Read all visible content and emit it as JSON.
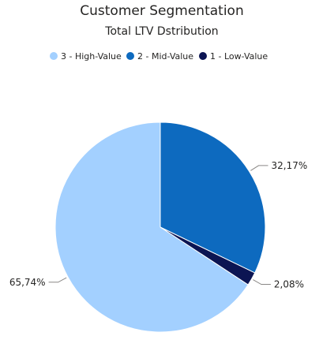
{
  "chart_data": {
    "type": "pie",
    "title": "Customer Segmentation",
    "subtitle": "Total LTV Dstribution",
    "legend_position": "top-center",
    "series": [
      {
        "name": "3 - High-Value",
        "value": 65.74,
        "label": "65,74%",
        "color": "#a3d0ff"
      },
      {
        "name": "2 - Mid-Value",
        "value": 32.17,
        "label": "32,17%",
        "color": "#0d6abf"
      },
      {
        "name": "1 - Low-Value",
        "value": 2.08,
        "label": "2,08%",
        "color": "#0c1553"
      }
    ]
  }
}
